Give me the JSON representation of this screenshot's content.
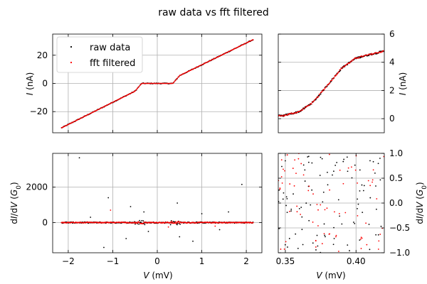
{
  "title": "raw data vs fft filtered",
  "legend": {
    "raw": "raw data",
    "fft": "fft filtered"
  },
  "colors": {
    "raw": "#000000",
    "fft": "#ff0000"
  },
  "chart_data": [
    {
      "panel": "top-left",
      "type": "scatter",
      "xlim": [
        -2.35,
        2.35
      ],
      "ylim": [
        -35,
        35
      ],
      "ylabel": "I (nA)",
      "xticks": [
        -2,
        -1,
        0,
        1,
        2
      ],
      "yticks": [
        -20,
        0,
        20
      ],
      "grid": true,
      "legend_position": "top-left",
      "x_range": [
        -2.15,
        2.15
      ],
      "curve_points": [
        {
          "x": -2.15,
          "y": -31.5
        },
        {
          "x": -0.5,
          "y": -5.5
        },
        {
          "x": -0.35,
          "y": 0
        },
        {
          "x": 0.35,
          "y": 0
        },
        {
          "x": 0.5,
          "y": 5.5
        },
        {
          "x": 2.15,
          "y": 31
        }
      ],
      "series": [
        {
          "name": "raw data"
        },
        {
          "name": "fft filtered"
        }
      ]
    },
    {
      "panel": "top-right",
      "type": "scatter",
      "xlim": [
        0.345,
        0.42
      ],
      "ylim": [
        -1,
        6
      ],
      "ylabel": "I (nA)",
      "yticks": [
        0,
        2,
        4,
        6
      ],
      "grid": true,
      "curve_points": [
        {
          "x": 0.348,
          "y": 0.2
        },
        {
          "x": 0.36,
          "y": 0.5
        },
        {
          "x": 0.37,
          "y": 1.2
        },
        {
          "x": 0.38,
          "y": 2.4
        },
        {
          "x": 0.39,
          "y": 3.6
        },
        {
          "x": 0.4,
          "y": 4.3
        },
        {
          "x": 0.42,
          "y": 4.8
        }
      ]
    },
    {
      "panel": "bottom-left",
      "type": "scatter",
      "xlim": [
        -2.35,
        2.35
      ],
      "ylim": [
        -1700,
        3900
      ],
      "ylabel": "dI/dV (G0)",
      "xlabel": "V (mV)",
      "xticks": [
        -2,
        -1,
        0,
        1,
        2
      ],
      "yticks": [
        -2000,
        0,
        2000
      ],
      "ytick_labels": [
        "",
        "0",
        "2000"
      ],
      "grid": true,
      "raw_outliers": [
        {
          "x": -1.75,
          "y": 3650
        },
        {
          "x": -1.1,
          "y": 1400
        },
        {
          "x": -1.2,
          "y": -1400
        },
        {
          "x": -0.6,
          "y": 900
        },
        {
          "x": -0.7,
          "y": -900
        },
        {
          "x": -0.3,
          "y": 600
        },
        {
          "x": 0.45,
          "y": 1100
        },
        {
          "x": 0.5,
          "y": -800
        },
        {
          "x": 0.8,
          "y": -1050
        },
        {
          "x": 1.0,
          "y": 500
        },
        {
          "x": 1.4,
          "y": -400
        },
        {
          "x": 1.9,
          "y": 2150
        },
        {
          "x": -1.5,
          "y": 300
        },
        {
          "x": -0.2,
          "y": -500
        },
        {
          "x": 1.6,
          "y": 600
        }
      ],
      "fft_outliers": [
        {
          "x": -1.05,
          "y": 700
        },
        {
          "x": 0.25,
          "y": -250
        },
        {
          "x": 1.3,
          "y": -200
        }
      ]
    },
    {
      "panel": "bottom-right",
      "type": "scatter",
      "xlim": [
        0.345,
        0.42
      ],
      "ylim": [
        -1,
        1
      ],
      "ylabel": "dI/dV (G0)",
      "xlabel": "V (mV)",
      "xticks": [
        0.35,
        0.4
      ],
      "xtick_labels": [
        "0.35",
        "0.40"
      ],
      "yticks": [
        -1,
        -0.5,
        0,
        0.5,
        1
      ],
      "ytick_labels": [
        "−1.0",
        "−0.5",
        "0.0",
        "0.5",
        "1.0"
      ],
      "grid": true
    }
  ]
}
